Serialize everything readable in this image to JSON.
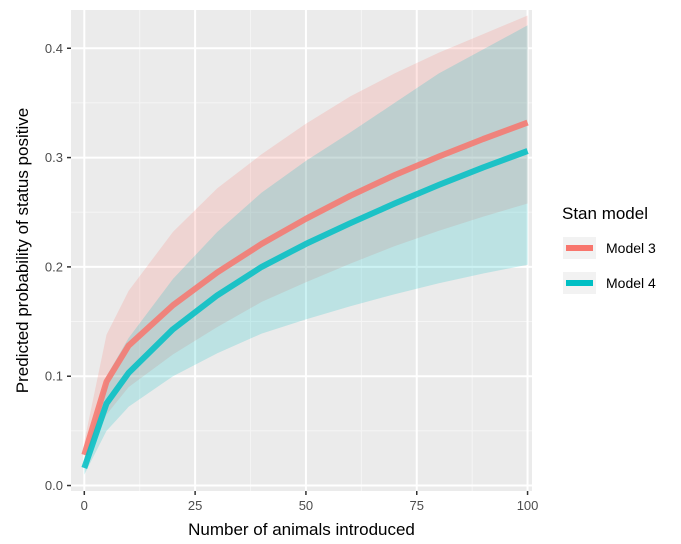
{
  "chart_data": {
    "type": "line",
    "xlabel": "Number of animals introduced",
    "ylabel": "Predicted probability of status positive",
    "xlim": [
      -3,
      101
    ],
    "ylim": [
      -0.005,
      0.435
    ],
    "x_ticks": [
      0,
      25,
      50,
      75,
      100
    ],
    "x_tick_labels": [
      "0",
      "25",
      "50",
      "75",
      "100"
    ],
    "y_ticks": [
      0.0,
      0.1,
      0.2,
      0.3,
      0.4
    ],
    "y_tick_labels": [
      "0.0",
      "0.1",
      "0.2",
      "0.3",
      "0.4"
    ],
    "grid": true,
    "legend": {
      "title": "Stan model",
      "position": "right"
    },
    "x": [
      0,
      5,
      10,
      20,
      30,
      40,
      50,
      60,
      70,
      80,
      90,
      100
    ],
    "series": [
      {
        "name": "Model 3",
        "color": "#F8766D",
        "values": [
          0.028,
          0.095,
          0.128,
          0.165,
          0.195,
          0.221,
          0.244,
          0.265,
          0.284,
          0.301,
          0.317,
          0.332
        ],
        "lower": [
          0.018,
          0.065,
          0.09,
          0.12,
          0.145,
          0.168,
          0.186,
          0.203,
          0.219,
          0.233,
          0.246,
          0.258
        ],
        "upper": [
          0.04,
          0.138,
          0.178,
          0.232,
          0.272,
          0.303,
          0.331,
          0.356,
          0.377,
          0.396,
          0.413,
          0.43
        ]
      },
      {
        "name": "Model 4",
        "color": "#00BFC4",
        "values": [
          0.016,
          0.075,
          0.103,
          0.143,
          0.174,
          0.2,
          0.221,
          0.24,
          0.258,
          0.275,
          0.291,
          0.306
        ],
        "lower": [
          0.01,
          0.05,
          0.072,
          0.1,
          0.121,
          0.139,
          0.152,
          0.164,
          0.175,
          0.185,
          0.194,
          0.202
        ],
        "upper": [
          0.024,
          0.1,
          0.135,
          0.189,
          0.232,
          0.268,
          0.297,
          0.323,
          0.35,
          0.377,
          0.399,
          0.421
        ]
      }
    ],
    "colors": {
      "panel": "#EBEBEB",
      "grid_major": "#FFFFFF",
      "grid_minor": "#F5F5F5"
    }
  }
}
